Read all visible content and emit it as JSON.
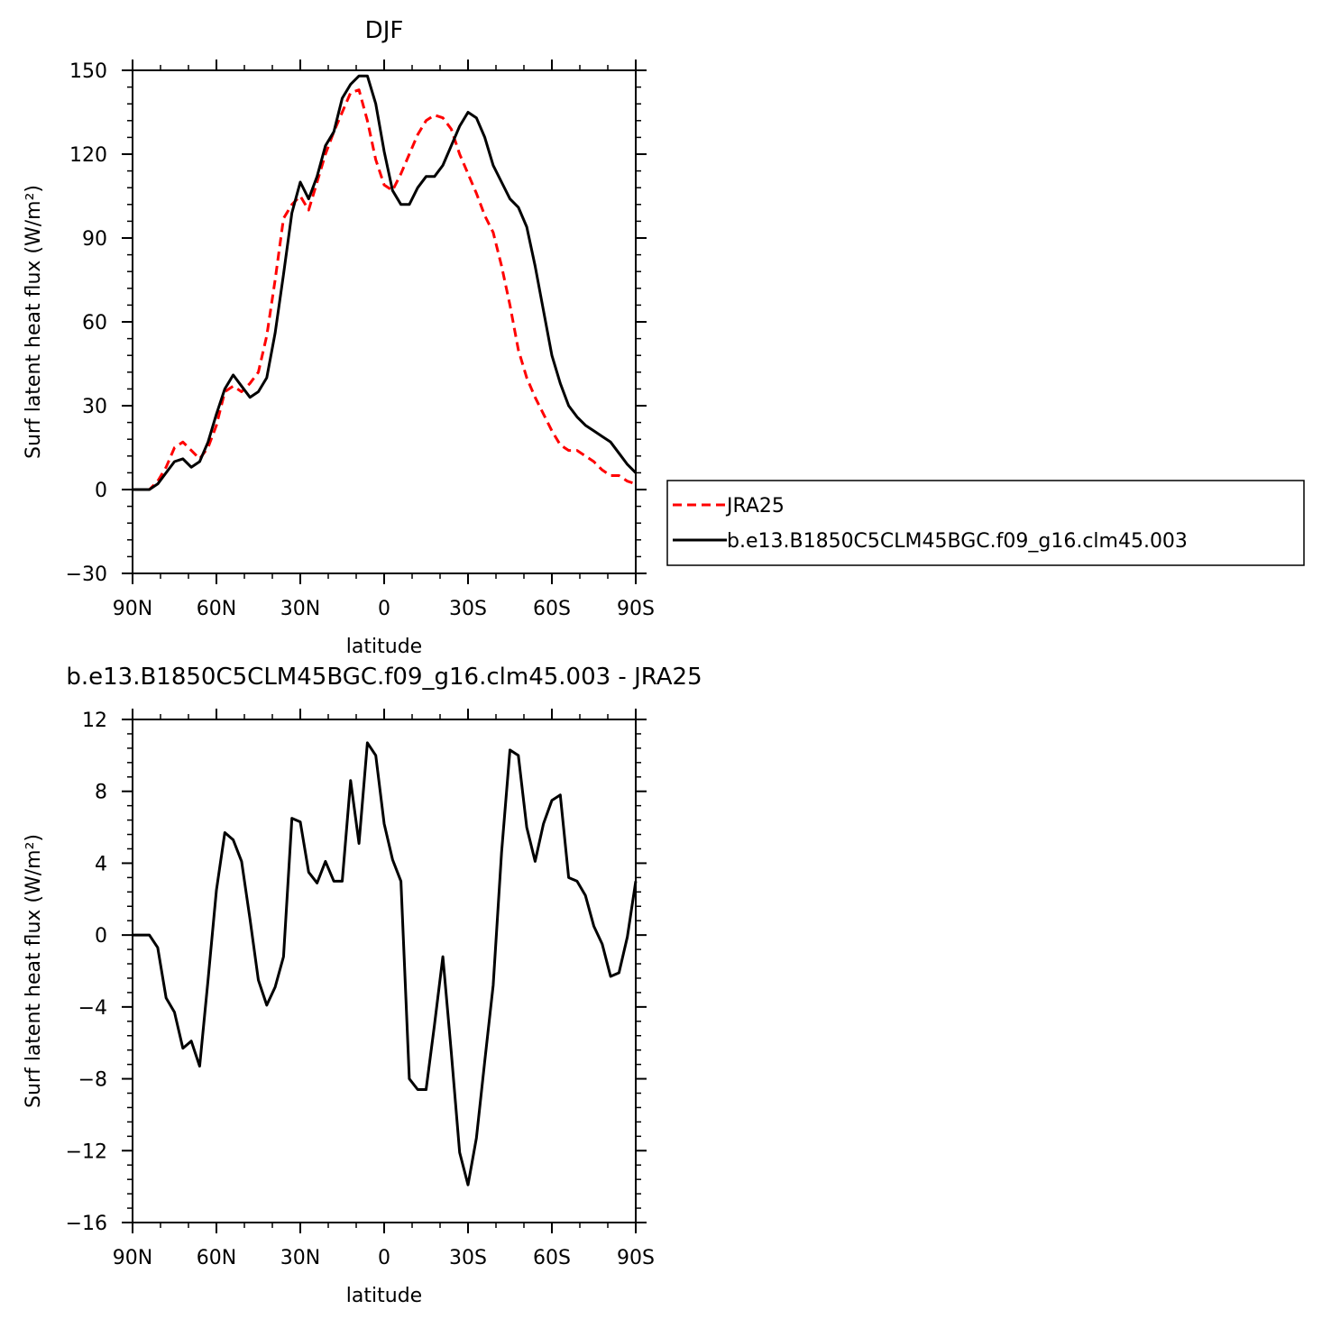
{
  "chart_data": [
    {
      "type": "line",
      "title": "DJF",
      "xlabel": "latitude",
      "ylabel": "Surf latent heat flux (W/m²)",
      "xlim": [
        90,
        -90
      ],
      "ylim": [
        -30,
        150
      ],
      "x_ticks": [
        90,
        60,
        30,
        0,
        -30,
        -60,
        -90
      ],
      "x_tick_labels": [
        "90N",
        "60N",
        "30N",
        "0",
        "30S",
        "60S",
        "90S"
      ],
      "y_ticks": [
        -30,
        0,
        30,
        60,
        90,
        120,
        150
      ],
      "y_tick_labels": [
        "−30",
        "0",
        "30",
        "60",
        "90",
        "120",
        "150"
      ],
      "grid": false,
      "legend": "right",
      "series": [
        {
          "name": "JRA25",
          "color": "#ff0000",
          "dash": "dashed",
          "points": [
            [
              90,
              0
            ],
            [
              87,
              0
            ],
            [
              84,
              0
            ],
            [
              81,
              3
            ],
            [
              78,
              8
            ],
            [
              75,
              15
            ],
            [
              72,
              17
            ],
            [
              69,
              14
            ],
            [
              66,
              11
            ],
            [
              63,
              15
            ],
            [
              60,
              23
            ],
            [
              57,
              35
            ],
            [
              54,
              37
            ],
            [
              51,
              35
            ],
            [
              48,
              38
            ],
            [
              45,
              42
            ],
            [
              42,
              55
            ],
            [
              39,
              75
            ],
            [
              36,
              97
            ],
            [
              33,
              102
            ],
            [
              30,
              105
            ],
            [
              27,
              100
            ],
            [
              24,
              110
            ],
            [
              21,
              120
            ],
            [
              18,
              128
            ],
            [
              15,
              135
            ],
            [
              12,
              142
            ],
            [
              9,
              143
            ],
            [
              6,
              132
            ],
            [
              3,
              118
            ],
            [
              0,
              109
            ],
            [
              -3,
              107
            ],
            [
              -6,
              113
            ],
            [
              -9,
              120
            ],
            [
              -12,
              127
            ],
            [
              -15,
              132
            ],
            [
              -18,
              134
            ],
            [
              -21,
              133
            ],
            [
              -24,
              129
            ],
            [
              -27,
              120
            ],
            [
              -30,
              113
            ],
            [
              -33,
              106
            ],
            [
              -36,
              98
            ],
            [
              -39,
              92
            ],
            [
              -42,
              80
            ],
            [
              -45,
              66
            ],
            [
              -48,
              50
            ],
            [
              -51,
              40
            ],
            [
              -54,
              33
            ],
            [
              -57,
              27
            ],
            [
              -60,
              21
            ],
            [
              -63,
              16
            ],
            [
              -66,
              14
            ],
            [
              -69,
              14
            ],
            [
              -72,
              12
            ],
            [
              -75,
              10
            ],
            [
              -78,
              7
            ],
            [
              -81,
              5
            ],
            [
              -84,
              5
            ],
            [
              -87,
              3
            ],
            [
              -90,
              2
            ]
          ]
        },
        {
          "name": "b.e13.B1850C5CLM45BGC.f09_g16.clm45.003",
          "color": "#000000",
          "dash": "solid",
          "points": [
            [
              90,
              0
            ],
            [
              87,
              0
            ],
            [
              84,
              0
            ],
            [
              81,
              2
            ],
            [
              78,
              6
            ],
            [
              75,
              10
            ],
            [
              72,
              11
            ],
            [
              69,
              8
            ],
            [
              66,
              10
            ],
            [
              63,
              17
            ],
            [
              60,
              27
            ],
            [
              57,
              36
            ],
            [
              54,
              41
            ],
            [
              51,
              37
            ],
            [
              48,
              33
            ],
            [
              45,
              35
            ],
            [
              42,
              40
            ],
            [
              39,
              56
            ],
            [
              36,
              77
            ],
            [
              33,
              99
            ],
            [
              30,
              110
            ],
            [
              27,
              104
            ],
            [
              24,
              112
            ],
            [
              21,
              123
            ],
            [
              18,
              128
            ],
            [
              15,
              140
            ],
            [
              12,
              145
            ],
            [
              9,
              148
            ],
            [
              6,
              148
            ],
            [
              3,
              138
            ],
            [
              0,
              121
            ],
            [
              -3,
              107
            ],
            [
              -6,
              102
            ],
            [
              -9,
              102
            ],
            [
              -12,
              108
            ],
            [
              -15,
              112
            ],
            [
              -18,
              112
            ],
            [
              -21,
              116
            ],
            [
              -24,
              123
            ],
            [
              -27,
              130
            ],
            [
              -30,
              135
            ],
            [
              -33,
              133
            ],
            [
              -36,
              126
            ],
            [
              -39,
              116
            ],
            [
              -42,
              110
            ],
            [
              -45,
              104
            ],
            [
              -48,
              101
            ],
            [
              -51,
              94
            ],
            [
              -54,
              80
            ],
            [
              -57,
              64
            ],
            [
              -60,
              48
            ],
            [
              -63,
              38
            ],
            [
              -66,
              30
            ],
            [
              -69,
              26
            ],
            [
              -72,
              23
            ],
            [
              -75,
              21
            ],
            [
              -78,
              19
            ],
            [
              -81,
              17
            ],
            [
              -84,
              13
            ],
            [
              -87,
              9
            ],
            [
              -90,
              6
            ]
          ]
        }
      ]
    },
    {
      "type": "line",
      "title": "b.e13.B1850C5CLM45BGC.f09_g16.clm45.003 - JRA25",
      "xlabel": "latitude",
      "ylabel": "Surf latent heat flux (W/m²)",
      "xlim": [
        90,
        -90
      ],
      "ylim": [
        -16,
        12
      ],
      "x_ticks": [
        90,
        60,
        30,
        0,
        -30,
        -60,
        -90
      ],
      "x_tick_labels": [
        "90N",
        "60N",
        "30N",
        "0",
        "30S",
        "60S",
        "90S"
      ],
      "y_ticks": [
        -16,
        -12,
        -8,
        -4,
        0,
        4,
        8,
        12
      ],
      "y_tick_labels": [
        "−16",
        "−12",
        "−8",
        "−4",
        "0",
        "4",
        "8",
        "12"
      ],
      "grid": false,
      "series": [
        {
          "color": "#000000",
          "dash": "solid",
          "points": [
            [
              90,
              0.0
            ],
            [
              87,
              0.0
            ],
            [
              84,
              0.0
            ],
            [
              81,
              -0.7
            ],
            [
              78,
              -3.5
            ],
            [
              75,
              -4.3
            ],
            [
              72,
              -6.3
            ],
            [
              69,
              -5.9
            ],
            [
              66,
              -7.3
            ],
            [
              63,
              -2.5
            ],
            [
              60,
              2.5
            ],
            [
              57,
              5.7
            ],
            [
              54,
              5.3
            ],
            [
              51,
              4.1
            ],
            [
              48,
              0.9
            ],
            [
              45,
              -2.5
            ],
            [
              42,
              -3.9
            ],
            [
              39,
              -2.9
            ],
            [
              36,
              -1.2
            ],
            [
              33,
              6.5
            ],
            [
              30,
              6.3
            ],
            [
              27,
              3.5
            ],
            [
              24,
              2.9
            ],
            [
              21,
              4.1
            ],
            [
              18,
              3.0
            ],
            [
              15,
              3.0
            ],
            [
              12,
              8.6
            ],
            [
              9,
              5.1
            ],
            [
              6,
              10.7
            ],
            [
              3,
              10.0
            ],
            [
              0,
              6.2
            ],
            [
              -3,
              4.2
            ],
            [
              -6,
              3.0
            ],
            [
              -9,
              -8.0
            ],
            [
              -12,
              -8.6
            ],
            [
              -15,
              -8.6
            ],
            [
              -18,
              -5.0
            ],
            [
              -21,
              -1.2
            ],
            [
              -24,
              -6.5
            ],
            [
              -27,
              -12.1
            ],
            [
              -30,
              -13.9
            ],
            [
              -33,
              -11.3
            ],
            [
              -36,
              -7.0
            ],
            [
              -39,
              -2.8
            ],
            [
              -42,
              4.6
            ],
            [
              -45,
              10.3
            ],
            [
              -48,
              10.0
            ],
            [
              -51,
              6.0
            ],
            [
              -54,
              4.1
            ],
            [
              -57,
              6.2
            ],
            [
              -60,
              7.5
            ],
            [
              -63,
              7.8
            ],
            [
              -66,
              3.2
            ],
            [
              -69,
              3.0
            ],
            [
              -72,
              2.2
            ],
            [
              -75,
              0.5
            ],
            [
              -78,
              -0.5
            ],
            [
              -81,
              -2.3
            ],
            [
              -84,
              -2.1
            ],
            [
              -87,
              -0.1
            ],
            [
              -90,
              3.0
            ]
          ]
        }
      ]
    }
  ]
}
